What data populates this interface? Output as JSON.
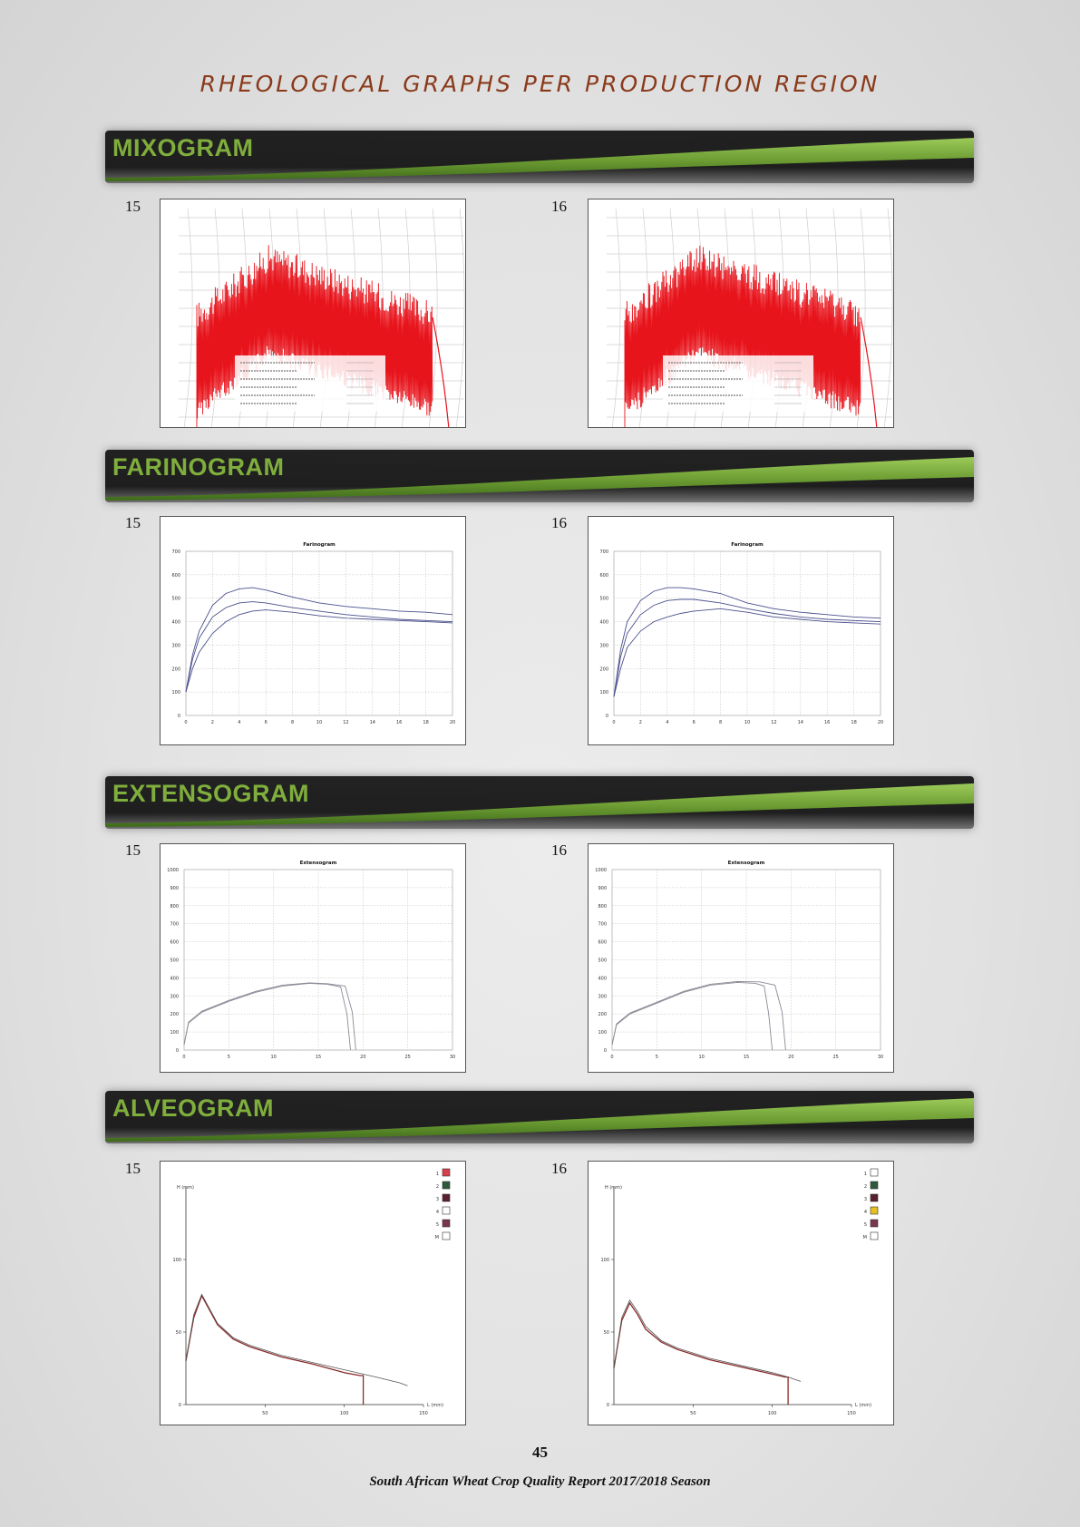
{
  "page_title": "RHEOLOGICAL GRAPHS PER PRODUCTION REGION",
  "sections": [
    {
      "title": "MIXOGRAM",
      "panels": [
        {
          "label": "15"
        },
        {
          "label": "16"
        }
      ]
    },
    {
      "title": "FARINOGRAM",
      "panels": [
        {
          "label": "15"
        },
        {
          "label": "16"
        }
      ]
    },
    {
      "title": "EXTENSOGRAM",
      "panels": [
        {
          "label": "15"
        },
        {
          "label": "16"
        }
      ]
    },
    {
      "title": "ALVEOGRAM",
      "panels": [
        {
          "label": "15"
        },
        {
          "label": "16"
        }
      ]
    }
  ],
  "page_number": "45",
  "footer": "South African Wheat Crop Quality Report 2017/2018 Season",
  "colors": {
    "title": "#8a3a1a",
    "banner_text": "#7fae3c",
    "mixogram_trace": "#e8141c",
    "farinogram_trace": "#4a4f8c",
    "extensogram_trace": "#8a8a96",
    "alveogram_trace": "#5a2a2a"
  },
  "chart_data": [
    {
      "type": "line",
      "id": "farinogram-15",
      "title": "Farinogram",
      "ylim": [
        0,
        700
      ],
      "xlim": [
        0,
        20
      ],
      "yticks": [
        "0",
        "100",
        "200",
        "300",
        "400",
        "500",
        "600",
        "700"
      ],
      "xticks": [
        "0",
        "2",
        "4",
        "6",
        "8",
        "10",
        "12",
        "14",
        "16",
        "18",
        "20"
      ],
      "series": [
        {
          "x": [
            0,
            0.5,
            1,
            2,
            3,
            4,
            5,
            6,
            8,
            10,
            12,
            14,
            16,
            18,
            20
          ],
          "y": [
            100,
            260,
            360,
            470,
            520,
            540,
            545,
            535,
            505,
            480,
            465,
            455,
            445,
            440,
            430
          ]
        },
        {
          "x": [
            0,
            0.5,
            1,
            2,
            3,
            4,
            5,
            6,
            8,
            10,
            12,
            14,
            16,
            18,
            20
          ],
          "y": [
            100,
            240,
            330,
            420,
            460,
            480,
            485,
            480,
            460,
            445,
            430,
            420,
            410,
            405,
            400
          ]
        },
        {
          "x": [
            0,
            0.5,
            1,
            2,
            3,
            4,
            5,
            6,
            8,
            10,
            12,
            14,
            16,
            18,
            20
          ],
          "y": [
            100,
            200,
            270,
            350,
            400,
            430,
            445,
            450,
            440,
            425,
            415,
            410,
            405,
            400,
            395
          ]
        }
      ]
    },
    {
      "type": "line",
      "id": "farinogram-16",
      "title": "Farinogram",
      "ylim": [
        0,
        700
      ],
      "xlim": [
        0,
        20
      ],
      "yticks": [
        "0",
        "100",
        "200",
        "300",
        "400",
        "500",
        "600",
        "700"
      ],
      "xticks": [
        "0",
        "2",
        "4",
        "6",
        "8",
        "10",
        "12",
        "14",
        "16",
        "18",
        "20"
      ],
      "series": [
        {
          "x": [
            0,
            0.5,
            1,
            2,
            3,
            4,
            5,
            6,
            8,
            10,
            12,
            14,
            16,
            18,
            20
          ],
          "y": [
            80,
            280,
            400,
            490,
            530,
            545,
            545,
            540,
            520,
            480,
            455,
            440,
            430,
            420,
            415
          ]
        },
        {
          "x": [
            0,
            0.5,
            1,
            2,
            3,
            4,
            5,
            6,
            8,
            10,
            12,
            14,
            16,
            18,
            20
          ],
          "y": [
            80,
            250,
            350,
            430,
            470,
            490,
            495,
            495,
            480,
            455,
            435,
            420,
            410,
            405,
            400
          ]
        },
        {
          "x": [
            0,
            0.5,
            1,
            2,
            3,
            4,
            5,
            6,
            8,
            10,
            12,
            14,
            16,
            18,
            20
          ],
          "y": [
            80,
            200,
            290,
            360,
            400,
            420,
            435,
            445,
            455,
            440,
            420,
            410,
            400,
            395,
            390
          ]
        }
      ]
    },
    {
      "type": "line",
      "id": "extensogram-15",
      "title": "Extensogram",
      "ylim": [
        0,
        1000
      ],
      "xlim": [
        0,
        30
      ],
      "yticks": [
        "0",
        "100",
        "200",
        "300",
        "400",
        "500",
        "600",
        "700",
        "800",
        "900",
        "1000"
      ],
      "xticks": [
        "0",
        "5",
        "10",
        "15",
        "20",
        "25",
        "30"
      ],
      "series": [
        {
          "x": [
            0,
            0.5,
            2,
            5,
            8,
            11,
            14,
            16,
            17.5,
            18.2,
            18.6
          ],
          "y": [
            30,
            150,
            210,
            270,
            320,
            355,
            370,
            365,
            350,
            200,
            0
          ]
        },
        {
          "x": [
            0,
            0.5,
            2,
            5,
            8,
            11,
            14,
            16,
            18,
            18.8,
            19.2
          ],
          "y": [
            30,
            155,
            215,
            275,
            325,
            360,
            372,
            368,
            355,
            210,
            0
          ]
        }
      ]
    },
    {
      "type": "line",
      "id": "extensogram-16",
      "title": "Extensogram",
      "ylim": [
        0,
        1000
      ],
      "xlim": [
        0,
        30
      ],
      "yticks": [
        "0",
        "100",
        "200",
        "300",
        "400",
        "500",
        "600",
        "700",
        "800",
        "900",
        "1000"
      ],
      "xticks": [
        "0",
        "5",
        "10",
        "15",
        "20",
        "25",
        "30"
      ],
      "series": [
        {
          "x": [
            0,
            0.5,
            2,
            5,
            8,
            11,
            14,
            16,
            17,
            17.5,
            17.9
          ],
          "y": [
            30,
            140,
            200,
            260,
            320,
            360,
            375,
            370,
            355,
            200,
            0
          ]
        },
        {
          "x": [
            0,
            0.5,
            2,
            5,
            8,
            11,
            14,
            16.5,
            18.2,
            19,
            19.4
          ],
          "y": [
            30,
            145,
            205,
            265,
            325,
            365,
            380,
            378,
            360,
            210,
            0
          ]
        }
      ]
    },
    {
      "type": "line",
      "id": "alveogram-15",
      "ylabel": "H (mm)",
      "xlabel": "L (mm)",
      "ylim": [
        0,
        150
      ],
      "xlim": [
        0,
        150
      ],
      "yticks": [
        "0",
        "50",
        "100"
      ],
      "xticks": [
        "50",
        "100",
        "150"
      ],
      "legend": [
        "1",
        "2",
        "3",
        "4",
        "5",
        "M"
      ],
      "legend_colors": [
        "#d9414a",
        "#2e5a3c",
        "#5a2030",
        "#ffffff",
        "#7a3550",
        "#ffffff"
      ],
      "series": [
        {
          "x": [
            0,
            5,
            10,
            15,
            20,
            30,
            40,
            60,
            80,
            100,
            110,
            112,
            112
          ],
          "y": [
            30,
            60,
            75,
            65,
            55,
            45,
            40,
            33,
            28,
            22,
            20,
            20,
            0
          ]
        },
        {
          "x": [
            0,
            5,
            10,
            15,
            20,
            30,
            40,
            60,
            80,
            100,
            120,
            135,
            140
          ],
          "y": [
            30,
            62,
            76,
            66,
            56,
            46,
            41,
            34,
            29,
            24,
            19,
            15,
            13
          ]
        }
      ]
    },
    {
      "type": "line",
      "id": "alveogram-16",
      "ylabel": "H (mm)",
      "xlabel": "L (mm)",
      "ylim": [
        0,
        150
      ],
      "xlim": [
        0,
        150
      ],
      "yticks": [
        "0",
        "50",
        "100"
      ],
      "xticks": [
        "50",
        "100",
        "150"
      ],
      "legend": [
        "1",
        "2",
        "3",
        "4",
        "5",
        "M"
      ],
      "legend_colors": [
        "#ffffff",
        "#2e5a3c",
        "#5a2030",
        "#e8c020",
        "#7a3550",
        "#ffffff"
      ],
      "series": [
        {
          "x": [
            0,
            5,
            10,
            15,
            20,
            30,
            40,
            60,
            80,
            100,
            108,
            110,
            110
          ],
          "y": [
            25,
            58,
            70,
            62,
            52,
            43,
            38,
            31,
            26,
            21,
            19,
            19,
            0
          ]
        },
        {
          "x": [
            0,
            5,
            10,
            15,
            20,
            30,
            40,
            60,
            80,
            100,
            110,
            115,
            118
          ],
          "y": [
            25,
            60,
            72,
            64,
            54,
            44,
            39,
            32,
            27,
            22,
            19,
            17,
            16
          ]
        }
      ]
    }
  ]
}
